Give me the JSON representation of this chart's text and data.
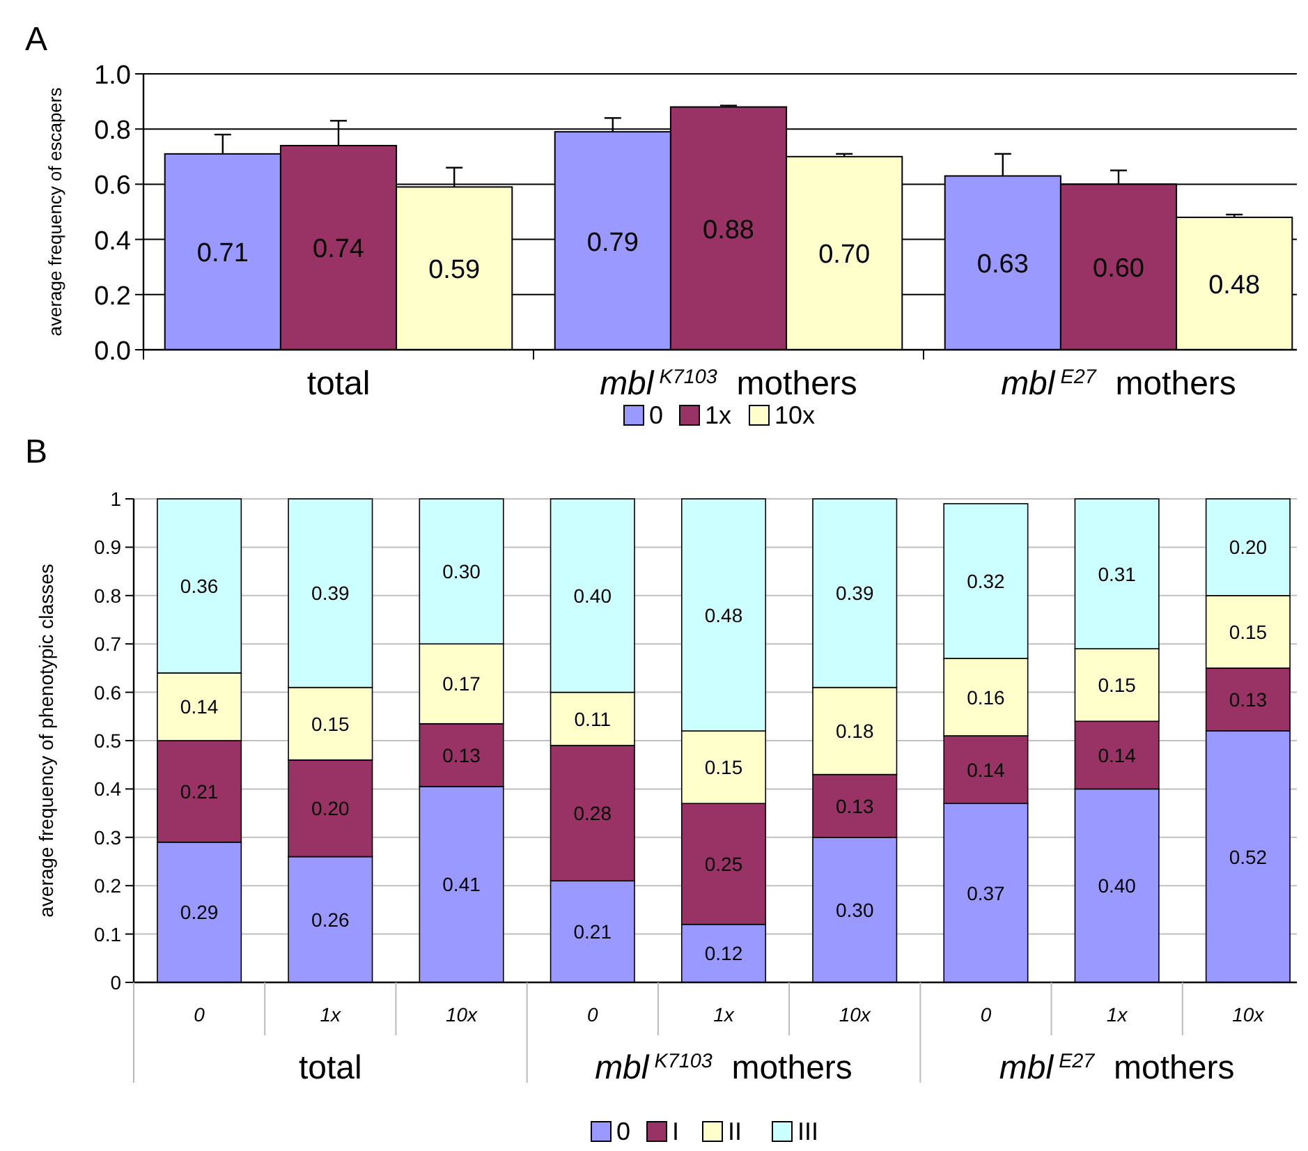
{
  "chart_data": [
    {
      "type": "bar",
      "title": "A",
      "ylabel": "average frequency of escapers",
      "categories": [
        "total",
        "mbl$^{K7103}$ mothers",
        "mbl$^{E27}$ mothers"
      ],
      "series": [
        {
          "name": "0",
          "color": "#9999ff",
          "values": [
            0.71,
            0.79,
            0.63
          ],
          "value_labels": [
            "0.71",
            "0.79",
            "0.63"
          ],
          "errors": [
            [
              0.71,
              0.78
            ],
            [
              0.79,
              0.84
            ],
            [
              0.63,
              0.71
            ]
          ]
        },
        {
          "name": "1x",
          "color": "#993366",
          "values": [
            0.74,
            0.88,
            0.6
          ],
          "value_labels": [
            "0.74",
            "0.88",
            "0.60"
          ],
          "errors": [
            [
              0.74,
              0.83
            ],
            [
              0.88,
              0.885
            ],
            [
              0.6,
              0.65
            ]
          ]
        },
        {
          "name": "10x",
          "color": "#ffffcc",
          "values": [
            0.59,
            0.7,
            0.48
          ],
          "value_labels": [
            "0.59",
            "0.70",
            "0.48"
          ],
          "errors": [
            [
              0.59,
              0.66
            ],
            [
              0.7,
              0.71
            ],
            [
              0.48,
              0.49
            ]
          ]
        }
      ],
      "ylim": [
        0,
        1
      ],
      "yticks": [
        {
          "value": 0,
          "label": "0.0"
        },
        {
          "value": 0.2,
          "label": "0.2"
        },
        {
          "value": 0.4,
          "label": "0.4"
        },
        {
          "value": 0.6,
          "label": "0.6"
        },
        {
          "value": 0.8,
          "label": "0.8"
        },
        {
          "value": 1,
          "label": "1.0"
        }
      ],
      "grid": "y",
      "legend": "bottom"
    },
    {
      "type": "bar",
      "title": "B",
      "ylabel": "average frequency of phenotypic classes",
      "stacked": true,
      "categories": [
        "0",
        "1x",
        "10x",
        "0",
        "1x",
        "10x",
        "0",
        "1x",
        "10x"
      ],
      "annotations": [
        "total",
        "mbl$^{K7103}$ mothers",
        "mbl$^{E27}$ mothers"
      ],
      "series": [
        {
          "name": "0",
          "color": "#9999ff",
          "values": [
            0.29,
            0.26,
            0.405,
            0.21,
            0.12,
            0.3,
            0.37,
            0.4,
            0.52
          ],
          "value_labels": [
            "0.29",
            "0.26",
            "0.41",
            "0.21",
            "0.12",
            "0.30",
            "0.37",
            "0.40",
            "0.52"
          ]
        },
        {
          "name": "I",
          "color": "#993366",
          "values": [
            0.21,
            0.2,
            0.13,
            0.28,
            0.25,
            0.13,
            0.14,
            0.14,
            0.13
          ],
          "value_labels": [
            "0.21",
            "0.20",
            "0.13",
            "0.28",
            "0.25",
            "0.13",
            "0.14",
            "0.14",
            "0.13"
          ]
        },
        {
          "name": "II",
          "color": "#ffffcc",
          "values": [
            0.14,
            0.15,
            0.165,
            0.11,
            0.15,
            0.18,
            0.16,
            0.15,
            0.15
          ],
          "value_labels": [
            "0.14",
            "0.15",
            "0.17",
            "0.11",
            "0.15",
            "0.18",
            "0.16",
            "0.15",
            "0.15"
          ]
        },
        {
          "name": "III",
          "color": "#ccffff",
          "values": [
            0.36,
            0.39,
            0.3,
            0.4,
            0.48,
            0.39,
            0.32,
            0.31,
            0.2
          ],
          "value_labels": [
            "0.36",
            "0.39",
            "0.30",
            "0.40",
            "0.48",
            "0.39",
            "0.32",
            "0.31",
            "0.20"
          ]
        }
      ],
      "ylim": [
        0,
        1
      ],
      "yticks": [
        0,
        0.1,
        0.2,
        0.3,
        0.4,
        0.5,
        0.6,
        0.7,
        0.8,
        0.9,
        1
      ],
      "grid": "y",
      "legend": "bottom"
    }
  ]
}
